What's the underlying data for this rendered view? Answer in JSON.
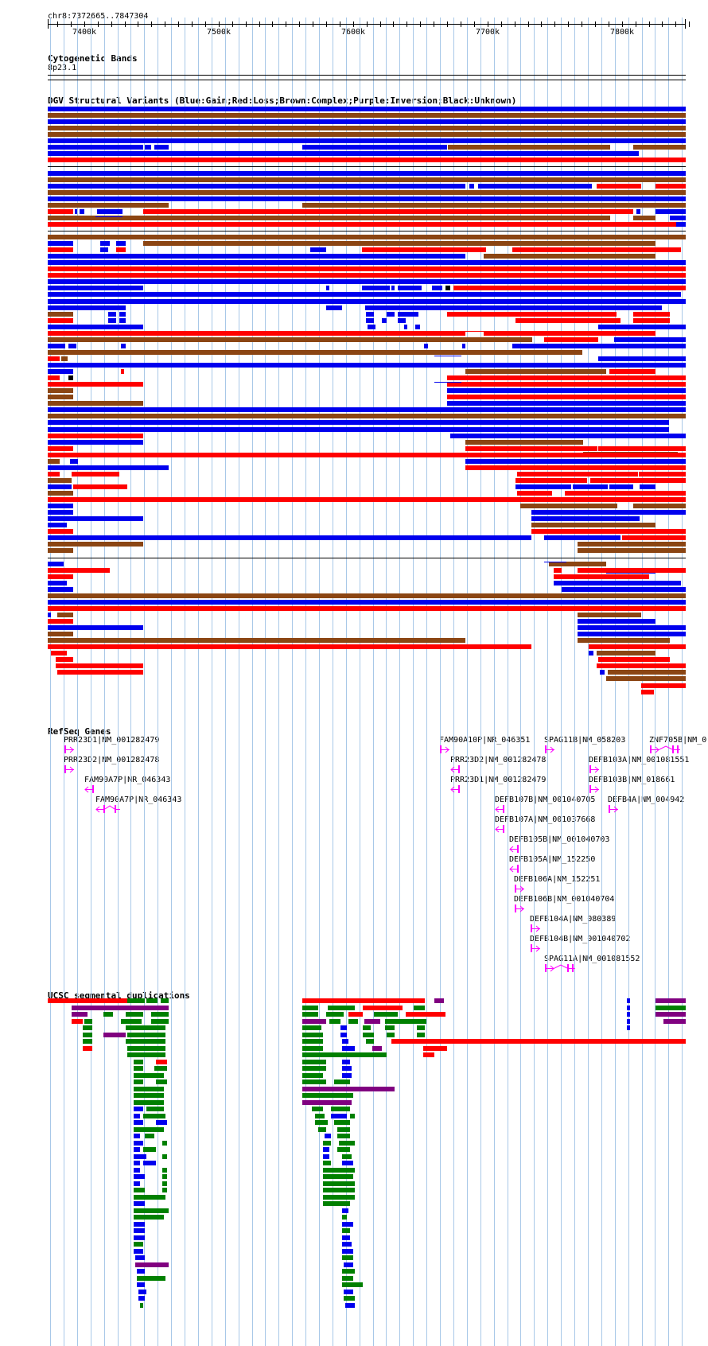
{
  "position_label": "chr8:7372665..7847304",
  "ruler": {
    "ticks": [
      "7400k",
      "7500k",
      "7600k",
      "7700k",
      "7800k"
    ]
  },
  "tracks": {
    "cytobands": {
      "title": "Cytogenetic Bands",
      "band": "8p23.1"
    },
    "dgv": {
      "title": "DGV Structural Variants (Blue:Gain;Red:Loss;Brown:Complex;Purple:Inversion;Black:Unknown)"
    },
    "refseq": {
      "title": "RefSeq Genes"
    },
    "segdup": {
      "title": "UCSC segmental duplications"
    }
  },
  "colors": {
    "gain": "#0000ee",
    "loss": "#ff0000",
    "complex": "#8b4513",
    "inversion": "#800080",
    "unknown": "#000000",
    "gene": "#ff00ff",
    "segdup_green": "#008000",
    "grid": "#a8c8e8"
  },
  "genes": [
    {
      "label": "PRR23D1|NM_001282479",
      "strand": "+",
      "icon": "arrow-right"
    },
    {
      "label": "PRR23D2|NM_001282478",
      "strand": "+",
      "icon": "arrow-right"
    },
    {
      "label": "FAM90A7P|NR_046343",
      "strand": "-",
      "icon": "arrow-left"
    },
    {
      "label": "FAM90A7P|NR_046343",
      "strand": "-",
      "icon": "arrow-left-split"
    },
    {
      "label": "FAM90A10P|NR_046351",
      "strand": "+",
      "icon": "arrow-right"
    },
    {
      "label": "SPAG11B|NM_058203",
      "strand": "+",
      "icon": "arrow-right"
    },
    {
      "label": "ZNF705B|NM_0",
      "strand": "+",
      "icon": "arrow-right-split"
    },
    {
      "label": "PRR23D2|NM_001282478",
      "strand": "-",
      "icon": "arrow-left"
    },
    {
      "label": "DEFB103A|NM_001081551",
      "strand": "+",
      "icon": "arrow-right"
    },
    {
      "label": "PRR23D1|NM_001282479",
      "strand": "-",
      "icon": "arrow-left"
    },
    {
      "label": "DEFB103B|NM_018661",
      "strand": "+",
      "icon": "arrow-right"
    },
    {
      "label": "DEFB107B|NM_001040705",
      "strand": "-",
      "icon": "arrow-left"
    },
    {
      "label": "DEFB4A|NM_004942",
      "strand": "+",
      "icon": "arrow-right"
    },
    {
      "label": "DEFB107A|NM_001037668",
      "strand": "-",
      "icon": "arrow-left"
    },
    {
      "label": "DEFB105B|NM_001040703",
      "strand": "-",
      "icon": "arrow-left"
    },
    {
      "label": "DEFB105A|NM_152250",
      "strand": "-",
      "icon": "arrow-left"
    },
    {
      "label": "DEFB106A|NM_152251",
      "strand": "+",
      "icon": "arrow-right"
    },
    {
      "label": "DEFB106B|NM_001040704",
      "strand": "+",
      "icon": "arrow-right"
    },
    {
      "label": "DEFB104A|NM_080389",
      "strand": "+",
      "icon": "arrow-right"
    },
    {
      "label": "DEFB104B|NM_001040702",
      "strand": "+",
      "icon": "arrow-right"
    },
    {
      "label": "SPAG11A|NM_001081552",
      "strand": "+",
      "icon": "arrow-right-split"
    }
  ]
}
